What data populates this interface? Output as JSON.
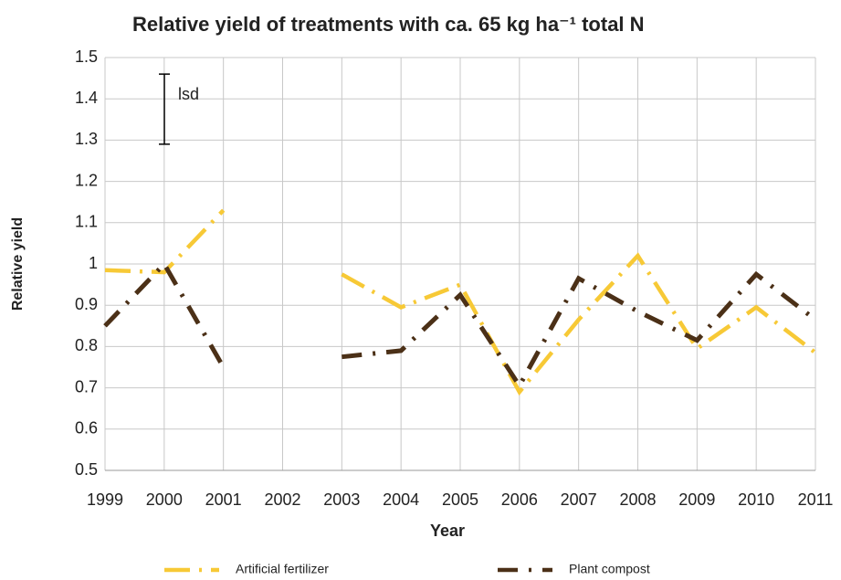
{
  "chart_data": {
    "type": "line",
    "title": "Relative yield of treatments with  ca. 65 kg ha⁻¹ total  N",
    "x_label": "Year",
    "y_label": "Relative yield",
    "x": [
      1999,
      2000,
      2001,
      2002,
      2003,
      2004,
      2005,
      2006,
      2007,
      2008,
      2009,
      2010,
      2011
    ],
    "series": [
      {
        "name": "Artificial fertilizer",
        "color": "#f7c936",
        "style": "dashed",
        "values": [
          0.985,
          0.98,
          1.13,
          null,
          0.975,
          0.895,
          0.95,
          0.69,
          0.865,
          1.02,
          0.795,
          0.895,
          0.785
        ]
      },
      {
        "name": "Plant compost",
        "color": "#4b3017",
        "style": "dash-dot",
        "values": [
          0.85,
          1.0,
          0.75,
          null,
          0.775,
          0.79,
          0.925,
          0.705,
          0.965,
          0.885,
          0.815,
          0.975,
          0.865
        ]
      }
    ],
    "error_bar": {
      "label": "lsd",
      "value": 1.375,
      "error": 0.085
    },
    "xlim": [
      1999,
      2011
    ],
    "xticks": [
      1999,
      2000,
      2001,
      2002,
      2003,
      2004,
      2005,
      2006,
      2007,
      2008,
      2009,
      2010,
      2011
    ],
    "ylim": [
      0.5,
      1.5
    ],
    "yticks": [
      {
        "value": 0.5,
        "label": "0.5"
      },
      {
        "value": 0.6,
        "label": "0.6"
      },
      {
        "value": 0.7,
        "label": "0.7"
      },
      {
        "value": 0.8,
        "label": "0.8"
      },
      {
        "value": 0.9,
        "label": "0.9"
      },
      1,
      {
        "value": 1.1,
        "label": "1.1"
      },
      {
        "value": 1.2,
        "label": "1.2"
      },
      {
        "value": 1.3,
        "label": "1.3"
      },
      {
        "value": 1.4,
        "label": "1.4"
      },
      {
        "value": 1.5,
        "label": "1.5"
      }
    ],
    "grid": true,
    "legend": "bottom"
  }
}
